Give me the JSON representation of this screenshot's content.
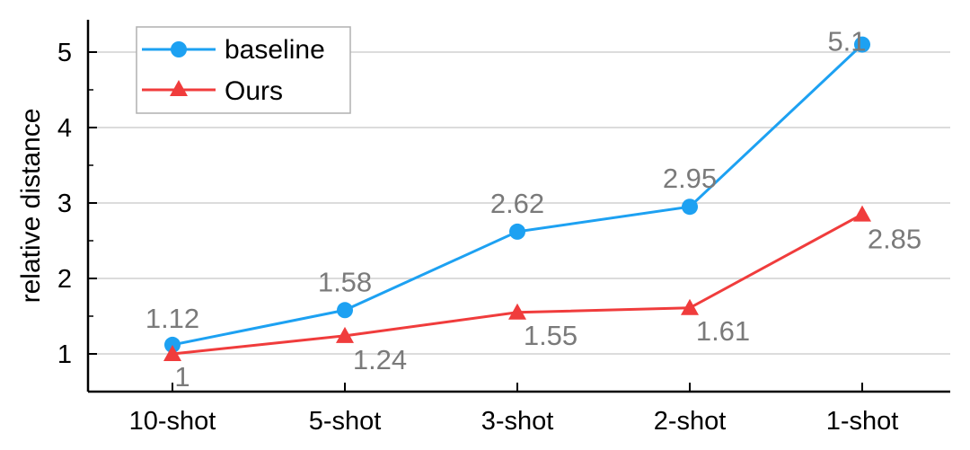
{
  "chart_data": {
    "type": "line",
    "categories": [
      "10-shot",
      "5-shot",
      "3-shot",
      "2-shot",
      "1-shot"
    ],
    "series": [
      {
        "name": "baseline",
        "values": [
          1.12,
          1.58,
          2.62,
          2.95,
          5.1
        ],
        "labels": [
          "1.12",
          "1.58",
          "2.62",
          "2.95",
          "5.1"
        ],
        "color": "#1da1f2",
        "marker": "circle"
      },
      {
        "name": "Ours",
        "values": [
          1,
          1.24,
          1.55,
          1.61,
          2.85
        ],
        "labels": [
          "1",
          "1.24",
          "1.55",
          "1.61",
          "2.85"
        ],
        "color": "#f03c3c",
        "marker": "triangle"
      }
    ],
    "xlabel": "",
    "ylabel": "relative distance",
    "ylim": [
      0.5,
      5.5
    ],
    "yticks": [
      1,
      2,
      3,
      4,
      5
    ],
    "ytick_labels": [
      "1",
      "2",
      "3",
      "4",
      "5"
    ],
    "grid": true,
    "legend_position": "top-left"
  }
}
